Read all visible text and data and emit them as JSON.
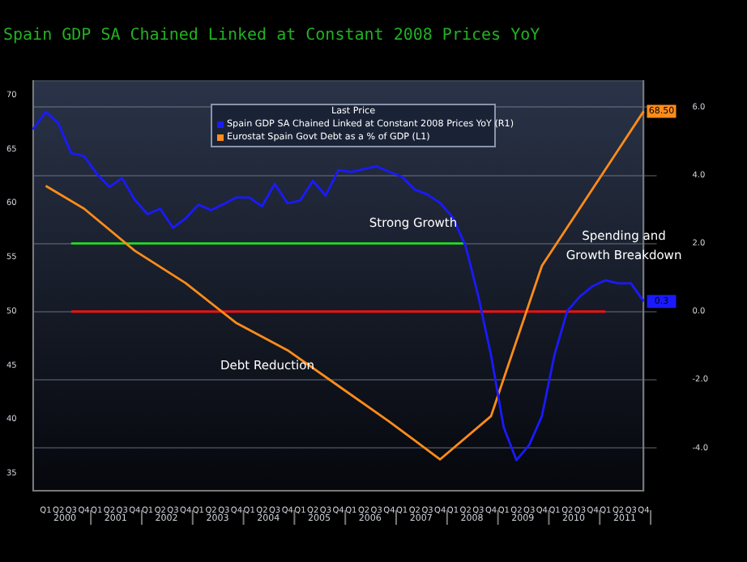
{
  "chart_data": {
    "type": "line",
    "title": "Spain GDP SA Chained Linked at Constant 2008 Prices YoY",
    "legend_title": "Last Price",
    "legend": "top",
    "categories": [
      null,
      "Q1",
      "Q2",
      "Q3",
      "Q4",
      "Q1",
      "Q2",
      "Q3",
      "Q4",
      "Q1",
      "Q2",
      "Q3",
      "Q4",
      "Q1",
      "Q2",
      "Q3",
      "Q4",
      "Q1",
      "Q2",
      "Q3",
      "Q4",
      "Q1",
      "Q2",
      "Q3",
      "Q4",
      "Q1",
      "Q2",
      "Q3",
      "Q4",
      "Q1",
      "Q2",
      "Q3",
      "Q4",
      "Q1",
      "Q2",
      "Q3",
      "Q4",
      "Q1",
      "Q2",
      "Q3",
      "Q4",
      "Q1",
      "Q2",
      "Q3",
      "Q4",
      "Q1",
      "Q2",
      "Q3",
      "Q4"
    ],
    "series": [
      {
        "name": "Spain GDP SA Chained Linked at Constant 2008 Prices YoY (R1)",
        "color": "#1a1aff",
        "axis": "y2",
        "values": [
          5.35,
          5.87,
          5.52,
          4.65,
          4.57,
          4.05,
          3.66,
          3.92,
          3.28,
          2.86,
          3.02,
          2.46,
          2.74,
          3.14,
          2.98,
          3.16,
          3.35,
          3.35,
          3.09,
          3.75,
          3.18,
          3.26,
          3.84,
          3.4,
          4.15,
          4.1,
          4.18,
          4.27,
          4.1,
          3.96,
          3.58,
          3.44,
          3.19,
          2.76,
          1.93,
          0.45,
          -1.28,
          -3.4,
          -4.36,
          -3.92,
          -3.07,
          -1.25,
          0.02,
          0.45,
          0.75,
          0.92,
          0.83,
          0.83,
          0.3
        ],
        "value_labels": [
          null,
          null,
          null,
          null,
          null,
          null,
          null,
          null,
          null,
          null,
          null,
          null,
          null,
          null,
          null,
          null,
          null,
          null,
          null,
          null,
          null,
          null,
          null,
          null,
          null,
          null,
          null,
          null,
          null,
          null,
          null,
          null,
          null,
          null,
          null,
          null,
          null,
          null,
          null,
          null,
          null,
          null,
          null,
          null,
          null,
          null,
          null,
          null,
          "0.3"
        ]
      },
      {
        "name": "Eurostat Spain Govt Debt as a % of GDP (L1)",
        "color": "#ff8c1a",
        "values": [
          null,
          61.6,
          null,
          null,
          59.5,
          null,
          null,
          null,
          55.6,
          null,
          null,
          null,
          52.6,
          null,
          null,
          null,
          48.9,
          null,
          null,
          null,
          46.4,
          null,
          null,
          null,
          43.1,
          null,
          null,
          null,
          39.8,
          null,
          null,
          null,
          36.3,
          null,
          null,
          null,
          40.3,
          null,
          null,
          null,
          54.2,
          null,
          null,
          null,
          null,
          null,
          null,
          null,
          68.5
        ],
        "value_labels": [
          null,
          null,
          null,
          null,
          null,
          null,
          null,
          null,
          null,
          null,
          null,
          null,
          null,
          null,
          null,
          null,
          null,
          null,
          null,
          null,
          null,
          null,
          null,
          null,
          null,
          null,
          null,
          null,
          null,
          null,
          null,
          null,
          null,
          null,
          null,
          null,
          null,
          null,
          null,
          null,
          null,
          null,
          null,
          null,
          null,
          null,
          null,
          null,
          "68.50"
        ]
      },
      {
        "color": "#22dd22",
        "axis": "y2",
        "values": [
          null,
          null,
          null,
          2,
          null,
          null,
          null,
          null,
          null,
          null,
          null,
          null,
          null,
          null,
          null,
          null,
          null,
          null,
          null,
          null,
          null,
          null,
          null,
          null,
          null,
          null,
          null,
          null,
          null,
          null,
          null,
          null,
          null,
          null,
          2,
          null,
          null,
          null,
          null,
          null,
          null,
          null,
          null,
          null,
          null,
          null,
          null,
          null,
          null
        ]
      },
      {
        "color": "#ee1111",
        "axis": "y2",
        "values": [
          null,
          null,
          null,
          0,
          null,
          null,
          null,
          null,
          null,
          null,
          null,
          null,
          null,
          null,
          null,
          null,
          null,
          null,
          null,
          null,
          null,
          null,
          null,
          null,
          null,
          null,
          null,
          null,
          null,
          null,
          null,
          null,
          null,
          null,
          null,
          null,
          null,
          null,
          null,
          null,
          null,
          null,
          null,
          null,
          null,
          0,
          null,
          null,
          null
        ]
      }
    ],
    "ylim": [
      33.4,
      71.3
    ],
    "yticks": [
      35,
      40,
      45,
      50,
      55,
      60,
      65,
      70
    ],
    "y2lim": [
      -5.26,
      6.77
    ],
    "y2ticks": [
      {
        "value": -4,
        "label": "-4.0"
      },
      {
        "value": -2,
        "label": "-2.0"
      },
      {
        "value": 0,
        "label": "0.0"
      },
      {
        "value": 2,
        "label": "2.0"
      },
      {
        "value": 4,
        "label": "4.0"
      },
      {
        "value": 6,
        "label": "6.0"
      }
    ],
    "grid": "y",
    "marker": "none",
    "line_style": "solid",
    "annotations": [
      "Strong Growth",
      "Debt Reduction",
      "Spending and Growth Breakdown",
      "2000",
      "2001",
      "2002",
      "2003",
      "2004",
      "2005",
      "2006",
      "2007",
      "2008",
      "2009",
      "2010",
      "2011"
    ]
  }
}
